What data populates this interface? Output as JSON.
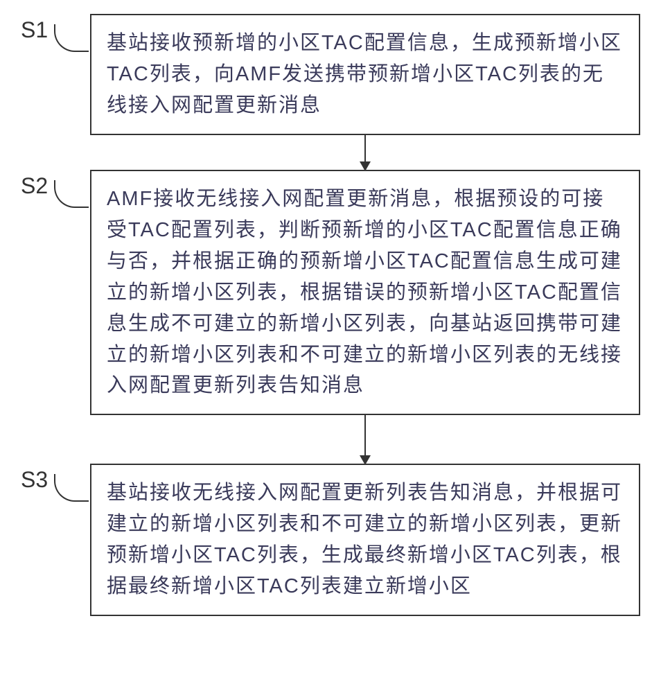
{
  "flowchart": {
    "type": "flowchart",
    "background_color": "#ffffff",
    "border_color": "#333333",
    "border_width": 2,
    "text_color": "#3a3a5a",
    "label_color": "#333333",
    "font_size_label": 32,
    "font_size_text": 29,
    "line_height": 1.55,
    "letter_spacing": 2,
    "steps": [
      {
        "label": "S1",
        "text": "基站接收预新增的小区TAC配置信息，生成预新增小区TAC列表，向AMF发送携带预新增小区TAC列表的无线接入网配置更新消息"
      },
      {
        "label": "S2",
        "text": "AMF接收无线接入网配置更新消息，根据预设的可接受TAC配置列表，判断预新增的小区TAC配置信息正确与否，并根据正确的预新增小区TAC配置信息生成可建立的新增小区列表，根据错误的预新增小区TAC配置信息生成不可建立的新增小区列表，向基站返回携带可建立的新增小区列表和不可建立的新增小区列表的无线接入网配置更新列表告知消息"
      },
      {
        "label": "S3",
        "text": "基站接收无线接入网配置更新列表告知消息，并根据可建立的新增小区列表和不可建立的新增小区列表，更新预新增小区TAC列表，生成最终新增小区TAC列表，根据最终新增小区TAC列表建立新增小区"
      }
    ],
    "arrow_heights": [
      "short",
      "medium"
    ]
  }
}
